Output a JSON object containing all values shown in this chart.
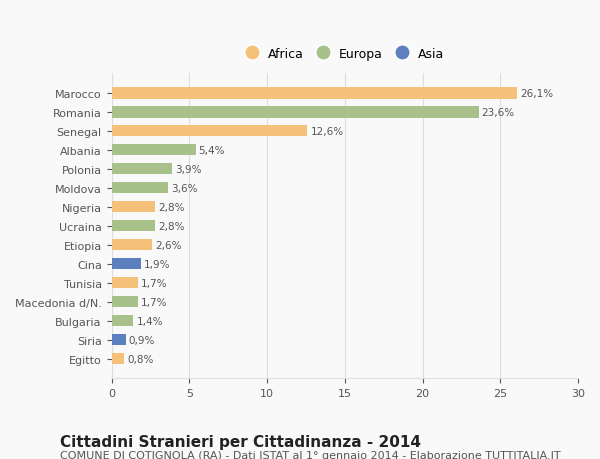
{
  "categories": [
    "Egitto",
    "Siria",
    "Bulgaria",
    "Macedonia d/N.",
    "Tunisia",
    "Cina",
    "Etiopia",
    "Ucraina",
    "Nigeria",
    "Moldova",
    "Polonia",
    "Albania",
    "Senegal",
    "Romania",
    "Marocco"
  ],
  "values": [
    0.8,
    0.9,
    1.4,
    1.7,
    1.7,
    1.9,
    2.6,
    2.8,
    2.8,
    3.6,
    3.9,
    5.4,
    12.6,
    23.6,
    26.1
  ],
  "continents": [
    "Africa",
    "Asia",
    "Europa",
    "Europa",
    "Africa",
    "Asia",
    "Africa",
    "Europa",
    "Africa",
    "Europa",
    "Europa",
    "Europa",
    "Africa",
    "Europa",
    "Africa"
  ],
  "labels": [
    "0,8%",
    "0,9%",
    "1,4%",
    "1,7%",
    "1,7%",
    "1,9%",
    "2,6%",
    "2,8%",
    "2,8%",
    "3,6%",
    "3,9%",
    "5,4%",
    "12,6%",
    "23,6%",
    "26,1%"
  ],
  "colors": {
    "Africa": "#F5C07A",
    "Europa": "#A8C08A",
    "Asia": "#5B7FBF"
  },
  "legend_order": [
    "Africa",
    "Europa",
    "Asia"
  ],
  "xlim": [
    0,
    30
  ],
  "xticks": [
    0,
    5,
    10,
    15,
    20,
    25,
    30
  ],
  "title": "Cittadini Stranieri per Cittadinanza - 2014",
  "subtitle": "COMUNE DI COTIGNOLA (RA) - Dati ISTAT al 1° gennaio 2014 - Elaborazione TUTTITALIA.IT",
  "title_fontsize": 11,
  "subtitle_fontsize": 8,
  "background_color": "#f9f9f9",
  "grid_color": "#dddddd"
}
